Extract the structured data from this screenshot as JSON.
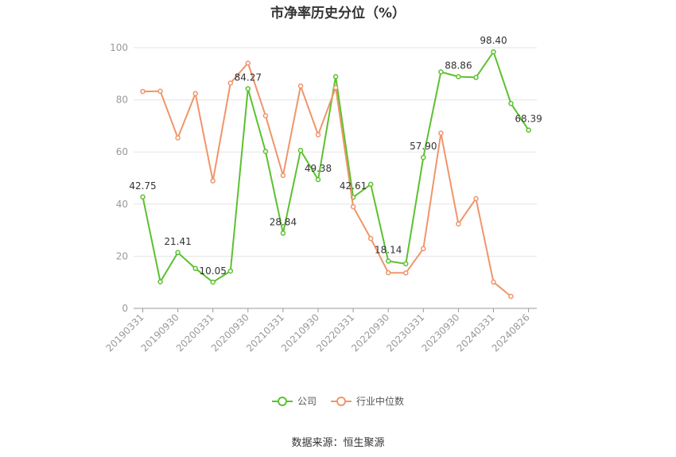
{
  "title": "市净率历史分位（%）",
  "source": "数据来源：恒生聚源",
  "colors": {
    "company": "#5cc130",
    "industry": "#f0956a",
    "axis": "#999999",
    "grid": "#e5e5e5",
    "tick_text": "#999999",
    "label_text": "#333333"
  },
  "chart_data": {
    "type": "line",
    "ylim": [
      0,
      100
    ],
    "yticks": [
      0,
      20,
      40,
      60,
      80,
      100
    ],
    "x_tick_labels": [
      "20190331",
      "20190930",
      "20200331",
      "20200930",
      "20210331",
      "20210930",
      "20220331",
      "20220930",
      "20230331",
      "20230930",
      "20240331",
      "20240826"
    ],
    "x": [
      "20190331",
      "20190630",
      "20190930",
      "20191231",
      "20200331",
      "20200630",
      "20200930",
      "20201231",
      "20210331",
      "20210630",
      "20210930",
      "20211231",
      "20220331",
      "20220630",
      "20220930",
      "20221231",
      "20230331",
      "20230630",
      "20230930",
      "20231231",
      "20240331",
      "20240630",
      "20240826"
    ],
    "series": [
      {
        "name": "公司",
        "color": "#5cc130",
        "values": [
          42.75,
          10.2,
          21.41,
          15.3,
          10.05,
          14.3,
          84.27,
          60.2,
          28.84,
          60.6,
          49.38,
          88.9,
          42.61,
          47.6,
          18.14,
          17.1,
          57.9,
          90.7,
          88.86,
          88.6,
          98.4,
          78.6,
          68.39
        ],
        "labels": {
          "0": "42.75",
          "2": "21.41",
          "4": "10.05",
          "6": "84.27",
          "8": "28.84",
          "10": "49.38",
          "12": "42.61",
          "14": "18.14",
          "16": "57.90",
          "18": "88.86",
          "20": "98.40",
          "22": "68.39"
        }
      },
      {
        "name": "行业中位数",
        "color": "#f0956a",
        "values": [
          83.2,
          83.3,
          65.4,
          82.4,
          48.9,
          86.4,
          94.1,
          73.9,
          51.0,
          85.3,
          66.6,
          84.7,
          39.0,
          26.8,
          13.7,
          13.6,
          22.9,
          67.2,
          32.4,
          42.1,
          10.1,
          4.6,
          null
        ]
      }
    ]
  }
}
